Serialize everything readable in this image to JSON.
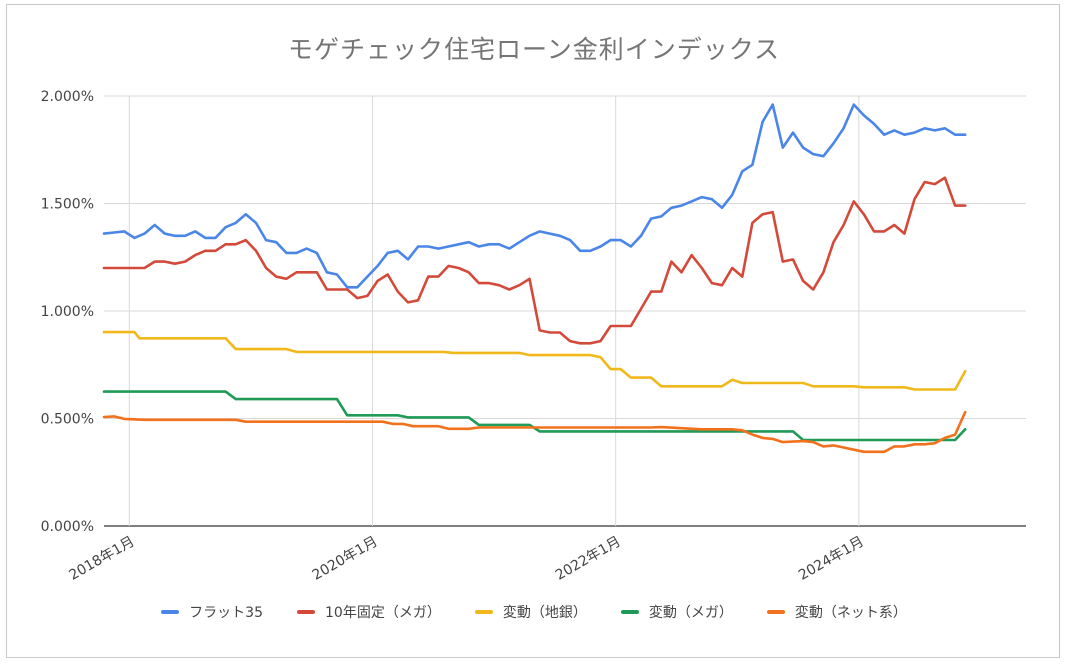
{
  "chart_data": {
    "type": "line",
    "title": "モゲチェック住宅ローン金利インデックス",
    "xlabel": "",
    "ylabel": "",
    "ylim": [
      0,
      2.0
    ],
    "y_ticks": [
      "0.000%",
      "0.500%",
      "1.000%",
      "1.500%",
      "2.000%"
    ],
    "y_tick_values": [
      0,
      0.5,
      1.0,
      1.5,
      2.0
    ],
    "x_ticks": [
      "2018年1月",
      "2020年1月",
      "2022年1月",
      "2024年1月"
    ],
    "x_tick_values": [
      0,
      24,
      48,
      72
    ],
    "x_range": [
      -2.5,
      88.5
    ],
    "x_unit": "months since 2018年1月",
    "grid": true,
    "legend_position": "bottom",
    "series": [
      {
        "name": "フラット35",
        "color": "#4a86e8",
        "points": [
          [
            -2.5,
            1.36
          ],
          [
            -1.5,
            1.365
          ],
          [
            -0.5,
            1.37
          ],
          [
            0.5,
            1.34
          ],
          [
            1.5,
            1.36
          ],
          [
            2.5,
            1.4
          ],
          [
            3.5,
            1.36
          ],
          [
            4.5,
            1.35
          ],
          [
            5.5,
            1.35
          ],
          [
            6.5,
            1.37
          ],
          [
            7.5,
            1.34
          ],
          [
            8.5,
            1.34
          ],
          [
            9.5,
            1.39
          ],
          [
            10.5,
            1.41
          ],
          [
            11.5,
            1.45
          ],
          [
            12.5,
            1.41
          ],
          [
            13.5,
            1.33
          ],
          [
            14.5,
            1.32
          ],
          [
            15.5,
            1.27
          ],
          [
            16.5,
            1.27
          ],
          [
            17.5,
            1.29
          ],
          [
            18.5,
            1.27
          ],
          [
            19.5,
            1.18
          ],
          [
            20.5,
            1.17
          ],
          [
            21.5,
            1.11
          ],
          [
            22.5,
            1.11
          ],
          [
            23.5,
            1.16
          ],
          [
            24.5,
            1.21
          ],
          [
            25.5,
            1.27
          ],
          [
            26.5,
            1.28
          ],
          [
            27.5,
            1.24
          ],
          [
            28.5,
            1.3
          ],
          [
            29.5,
            1.3
          ],
          [
            30.5,
            1.29
          ],
          [
            31.5,
            1.3
          ],
          [
            32.5,
            1.31
          ],
          [
            33.5,
            1.32
          ],
          [
            34.5,
            1.3
          ],
          [
            35.5,
            1.31
          ],
          [
            36.5,
            1.31
          ],
          [
            37.5,
            1.29
          ],
          [
            38.5,
            1.32
          ],
          [
            39.5,
            1.35
          ],
          [
            40.5,
            1.37
          ],
          [
            41.5,
            1.36
          ],
          [
            42.5,
            1.35
          ],
          [
            43.5,
            1.33
          ],
          [
            44.5,
            1.28
          ],
          [
            45.5,
            1.28
          ],
          [
            46.5,
            1.3
          ],
          [
            47.5,
            1.33
          ],
          [
            48.5,
            1.33
          ],
          [
            49.5,
            1.3
          ],
          [
            50.5,
            1.35
          ],
          [
            51.5,
            1.43
          ],
          [
            52.5,
            1.44
          ],
          [
            53.5,
            1.48
          ],
          [
            54.5,
            1.49
          ],
          [
            55.5,
            1.51
          ],
          [
            56.5,
            1.53
          ],
          [
            57.5,
            1.52
          ],
          [
            58.5,
            1.48
          ],
          [
            59.5,
            1.54
          ],
          [
            60.5,
            1.65
          ],
          [
            61.5,
            1.68
          ],
          [
            62.5,
            1.88
          ],
          [
            63.5,
            1.96
          ],
          [
            64.5,
            1.76
          ],
          [
            65.5,
            1.83
          ],
          [
            66.5,
            1.76
          ],
          [
            67.5,
            1.73
          ],
          [
            68.5,
            1.72
          ],
          [
            69.5,
            1.78
          ],
          [
            70.5,
            1.85
          ],
          [
            71.5,
            1.96
          ],
          [
            72.5,
            1.91
          ],
          [
            73.5,
            1.87
          ],
          [
            74.5,
            1.82
          ],
          [
            75.5,
            1.84
          ],
          [
            76.5,
            1.82
          ],
          [
            77.5,
            1.83
          ],
          [
            78.5,
            1.85
          ],
          [
            79.5,
            1.84
          ],
          [
            80.5,
            1.85
          ],
          [
            81.5,
            1.82
          ],
          [
            82.5,
            1.82
          ]
        ]
      },
      {
        "name": "10年固定（メガ）",
        "color": "#d44a3a",
        "points": [
          [
            -2.5,
            1.2
          ],
          [
            -1.5,
            1.2
          ],
          [
            -0.5,
            1.2
          ],
          [
            0.5,
            1.2
          ],
          [
            1.5,
            1.2
          ],
          [
            2.5,
            1.23
          ],
          [
            3.5,
            1.23
          ],
          [
            4.5,
            1.22
          ],
          [
            5.5,
            1.23
          ],
          [
            6.5,
            1.26
          ],
          [
            7.5,
            1.28
          ],
          [
            8.5,
            1.28
          ],
          [
            9.5,
            1.31
          ],
          [
            10.5,
            1.31
          ],
          [
            11.5,
            1.33
          ],
          [
            12.5,
            1.28
          ],
          [
            13.5,
            1.2
          ],
          [
            14.5,
            1.16
          ],
          [
            15.5,
            1.15
          ],
          [
            16.5,
            1.18
          ],
          [
            17.5,
            1.18
          ],
          [
            18.5,
            1.18
          ],
          [
            19.5,
            1.1
          ],
          [
            20.5,
            1.1
          ],
          [
            21.5,
            1.1
          ],
          [
            22.5,
            1.06
          ],
          [
            23.5,
            1.07
          ],
          [
            24.5,
            1.14
          ],
          [
            25.5,
            1.17
          ],
          [
            26.5,
            1.09
          ],
          [
            27.5,
            1.04
          ],
          [
            28.5,
            1.05
          ],
          [
            29.5,
            1.16
          ],
          [
            30.5,
            1.16
          ],
          [
            31.5,
            1.21
          ],
          [
            32.5,
            1.2
          ],
          [
            33.5,
            1.18
          ],
          [
            34.5,
            1.13
          ],
          [
            35.5,
            1.13
          ],
          [
            36.5,
            1.12
          ],
          [
            37.5,
            1.1
          ],
          [
            38.5,
            1.12
          ],
          [
            39.5,
            1.15
          ],
          [
            40.5,
            0.91
          ],
          [
            41.5,
            0.9
          ],
          [
            42.5,
            0.9
          ],
          [
            43.5,
            0.86
          ],
          [
            44.5,
            0.85
          ],
          [
            45.5,
            0.85
          ],
          [
            46.5,
            0.86
          ],
          [
            47.5,
            0.93
          ],
          [
            48.5,
            0.93
          ],
          [
            49.5,
            0.93
          ],
          [
            50.5,
            1.01
          ],
          [
            51.5,
            1.09
          ],
          [
            52.5,
            1.09
          ],
          [
            53.5,
            1.23
          ],
          [
            54.5,
            1.18
          ],
          [
            55.5,
            1.26
          ],
          [
            56.5,
            1.2
          ],
          [
            57.5,
            1.13
          ],
          [
            58.5,
            1.12
          ],
          [
            59.5,
            1.2
          ],
          [
            60.5,
            1.16
          ],
          [
            61.5,
            1.41
          ],
          [
            62.5,
            1.45
          ],
          [
            63.5,
            1.46
          ],
          [
            64.5,
            1.23
          ],
          [
            65.5,
            1.24
          ],
          [
            66.5,
            1.14
          ],
          [
            67.5,
            1.1
          ],
          [
            68.5,
            1.18
          ],
          [
            69.5,
            1.32
          ],
          [
            70.5,
            1.4
          ],
          [
            71.5,
            1.51
          ],
          [
            72.5,
            1.45
          ],
          [
            73.5,
            1.37
          ],
          [
            74.5,
            1.37
          ],
          [
            75.5,
            1.4
          ],
          [
            76.5,
            1.36
          ],
          [
            77.5,
            1.52
          ],
          [
            78.5,
            1.6
          ],
          [
            79.5,
            1.59
          ],
          [
            80.5,
            1.62
          ],
          [
            81.5,
            1.49
          ],
          [
            82.5,
            1.49
          ]
        ]
      },
      {
        "name": "変動（地銀）",
        "color": "#f1b81c",
        "points": [
          [
            -2.5,
            0.902
          ],
          [
            0.5,
            0.902
          ],
          [
            1.0,
            0.873
          ],
          [
            9.5,
            0.873
          ],
          [
            10.5,
            0.823
          ],
          [
            15.5,
            0.823
          ],
          [
            16.5,
            0.81
          ],
          [
            31.0,
            0.81
          ],
          [
            32.0,
            0.805
          ],
          [
            38.5,
            0.805
          ],
          [
            39.5,
            0.795
          ],
          [
            45.5,
            0.795
          ],
          [
            46.5,
            0.785
          ],
          [
            47.5,
            0.73
          ],
          [
            48.5,
            0.73
          ],
          [
            49.5,
            0.69
          ],
          [
            51.5,
            0.69
          ],
          [
            52.5,
            0.65
          ],
          [
            58.5,
            0.65
          ],
          [
            59.5,
            0.68
          ],
          [
            60.5,
            0.665
          ],
          [
            66.5,
            0.665
          ],
          [
            67.5,
            0.65
          ],
          [
            71.5,
            0.65
          ],
          [
            72.5,
            0.645
          ],
          [
            76.5,
            0.645
          ],
          [
            77.5,
            0.635
          ],
          [
            81.5,
            0.635
          ],
          [
            82.5,
            0.72
          ]
        ]
      },
      {
        "name": "変動（メガ）",
        "color": "#1f9a57",
        "points": [
          [
            -2.5,
            0.625
          ],
          [
            9.5,
            0.625
          ],
          [
            10.5,
            0.59
          ],
          [
            20.5,
            0.59
          ],
          [
            21.5,
            0.515
          ],
          [
            26.5,
            0.515
          ],
          [
            27.5,
            0.505
          ],
          [
            33.5,
            0.505
          ],
          [
            34.5,
            0.47
          ],
          [
            39.5,
            0.47
          ],
          [
            40.5,
            0.44
          ],
          [
            65.5,
            0.44
          ],
          [
            66.5,
            0.4
          ],
          [
            81.5,
            0.4
          ],
          [
            82.5,
            0.45
          ]
        ]
      },
      {
        "name": "変動（ネット系）",
        "color": "#f2711c",
        "points": [
          [
            -2.5,
            0.507
          ],
          [
            -1.5,
            0.51
          ],
          [
            -0.5,
            0.498
          ],
          [
            1.5,
            0.494
          ],
          [
            10.5,
            0.494
          ],
          [
            11.5,
            0.485
          ],
          [
            25.0,
            0.485
          ],
          [
            26.0,
            0.475
          ],
          [
            27.0,
            0.475
          ],
          [
            28.0,
            0.464
          ],
          [
            30.5,
            0.464
          ],
          [
            31.5,
            0.452
          ],
          [
            33.5,
            0.452
          ],
          [
            34.5,
            0.458
          ],
          [
            51.5,
            0.458
          ],
          [
            52.5,
            0.46
          ],
          [
            54.5,
            0.455
          ],
          [
            56.5,
            0.45
          ],
          [
            59.5,
            0.45
          ],
          [
            60.5,
            0.445
          ],
          [
            61.5,
            0.425
          ],
          [
            62.5,
            0.41
          ],
          [
            63.5,
            0.405
          ],
          [
            64.5,
            0.39
          ],
          [
            66.5,
            0.395
          ],
          [
            67.5,
            0.39
          ],
          [
            68.5,
            0.37
          ],
          [
            69.5,
            0.375
          ],
          [
            70.5,
            0.365
          ],
          [
            71.5,
            0.355
          ],
          [
            72.5,
            0.345
          ],
          [
            74.5,
            0.345
          ],
          [
            75.5,
            0.37
          ],
          [
            76.5,
            0.37
          ],
          [
            77.5,
            0.38
          ],
          [
            78.5,
            0.38
          ],
          [
            79.5,
            0.385
          ],
          [
            80.5,
            0.41
          ],
          [
            81.5,
            0.425
          ],
          [
            82.5,
            0.53
          ]
        ]
      }
    ]
  }
}
